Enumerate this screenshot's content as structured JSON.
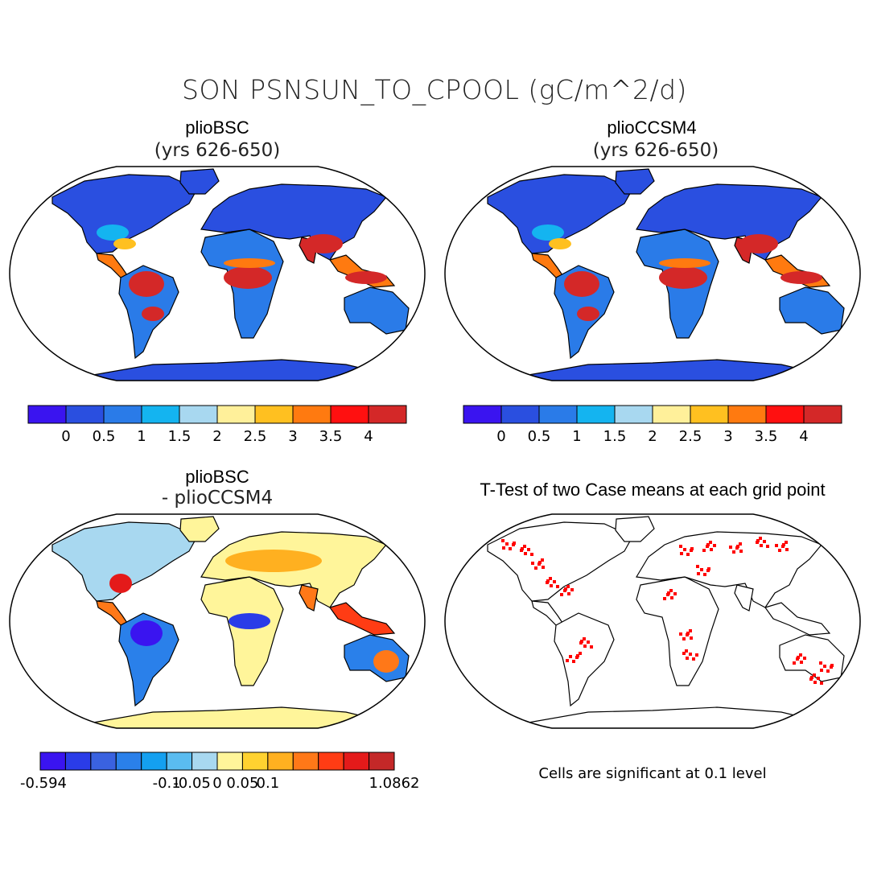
{
  "title": "SON PSNSUN_TO_CPOOL (gC/m^2/d)",
  "panels": [
    {
      "title": "plioBSC",
      "subtitle": "(yrs 626-650)",
      "colorbar": {
        "colors": [
          "#3a14f0",
          "#2a4fe0",
          "#2a7be8",
          "#14b4f0",
          "#a8d8f0",
          "#fff09a",
          "#ffc020",
          "#ff7a10",
          "#ff1010",
          "#d42828"
        ],
        "labels": [
          "0",
          "0.5",
          "1",
          "1.5",
          "2",
          "2.5",
          "3",
          "3.5",
          "4"
        ]
      }
    },
    {
      "title": "plioCCSM4",
      "subtitle": "(yrs 626-650)",
      "colorbar": {
        "colors": [
          "#3a14f0",
          "#2a4fe0",
          "#2a7be8",
          "#14b4f0",
          "#a8d8f0",
          "#fff09a",
          "#ffc020",
          "#ff7a10",
          "#ff1010",
          "#d42828"
        ],
        "labels": [
          "0",
          "0.5",
          "1",
          "1.5",
          "2",
          "2.5",
          "3",
          "3.5",
          "4"
        ]
      }
    },
    {
      "title": "plioBSC",
      "subtitle": "- plioCCSM4",
      "colorbar": {
        "colors": [
          "#3a14f0",
          "#2a3ce8",
          "#3a62e0",
          "#2a80ea",
          "#14a0f0",
          "#5abcf0",
          "#a8d8f0",
          "#fff59a",
          "#ffd230",
          "#ffb020",
          "#ff7818",
          "#ff3c14",
          "#e41a1a",
          "#c42828"
        ],
        "labels": [
          "-0.594",
          "-0.1",
          "-0.05",
          "0",
          "0.05",
          "0.1",
          "1.0862"
        ]
      }
    },
    {
      "title": "T-Test of two Case means at each grid point",
      "note": "Cells are significant at 0.1 level"
    }
  ]
}
